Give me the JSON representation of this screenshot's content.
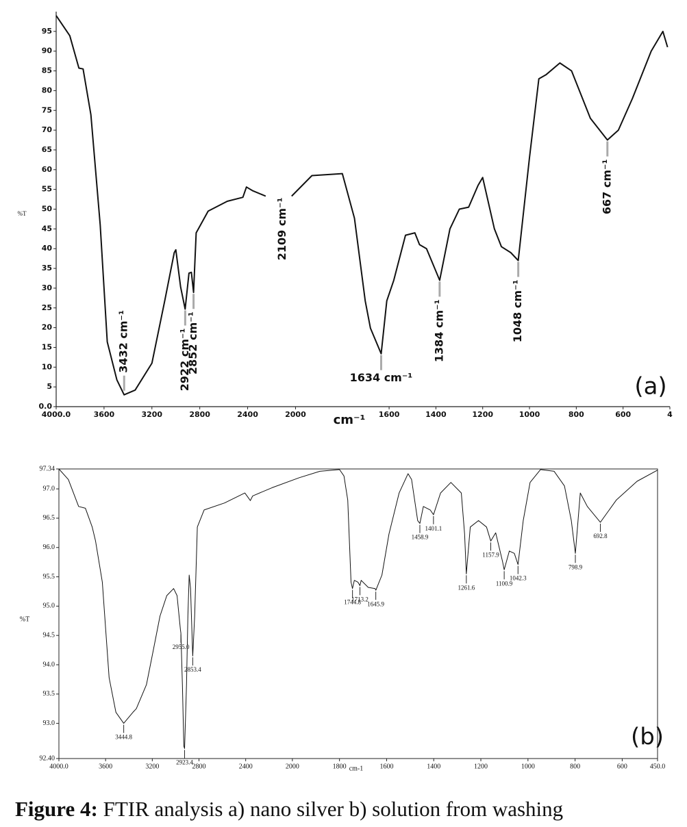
{
  "chart_data": [
    {
      "type": "line",
      "panel_label": "(a)",
      "x_label": "cm⁻¹",
      "y_label": "%T",
      "x_split": 2000,
      "xlim": [
        4000,
        400
      ],
      "ylim": [
        0,
        100
      ],
      "xticks": [
        {
          "value": 4000,
          "label": "4000.0"
        },
        3600,
        3200,
        2800,
        2400,
        2000,
        1600,
        1400,
        1200,
        1000,
        800,
        600,
        {
          "value": 400,
          "label": "4"
        }
      ],
      "yticks": [
        {
          "value": 0,
          "label": "0.0"
        },
        5,
        10,
        15,
        20,
        25,
        30,
        35,
        40,
        45,
        50,
        55,
        60,
        65,
        70,
        75,
        80,
        85,
        90,
        95
      ],
      "series": [
        {
          "color": "#111111",
          "x": [
            4000,
            3886,
            3810,
            3775,
            3710,
            3632,
            3573,
            3493,
            3432,
            3340,
            3200,
            3093,
            3013,
            3000,
            2960,
            2922,
            2890,
            2870,
            2852,
            2830,
            2730,
            2570,
            2440,
            2410,
            2360,
            2249,
            2140,
            2032,
            1930,
            1800,
            1748,
            1702,
            1680,
            1634,
            1610,
            1580,
            1530,
            1490,
            1470,
            1440,
            1384,
            1340,
            1300,
            1260,
            1220,
            1200,
            1150,
            1120,
            1080,
            1048,
            1000,
            960,
            930,
            870,
            820,
            740,
            667,
            620,
            560,
            480,
            430,
            410
          ],
          "values": [
            99,
            93.9,
            85.7,
            85.5,
            73.9,
            46,
            16.4,
            6.8,
            3,
            4.2,
            11,
            26.8,
            39,
            39.7,
            30.3,
            24.7,
            33.8,
            34,
            28.9,
            44,
            49.5,
            52,
            53,
            55.6,
            54.7,
            53.3,
            null,
            53.3,
            58.5,
            59,
            47.7,
            26.8,
            19.9,
            13.4,
            26.8,
            32,
            43.4,
            44,
            41,
            40,
            32,
            45,
            50,
            50.5,
            56,
            58,
            45,
            40.5,
            39,
            37,
            63,
            83,
            84,
            87,
            85,
            73,
            67.5,
            70,
            78,
            90,
            95,
            91
          ]
        }
      ],
      "annotations": [
        {
          "label": "3432 cm⁻¹",
          "x": 3432,
          "y": 3,
          "orientation": "vertical"
        },
        {
          "label": "2922 cm⁻¹",
          "x": 2922,
          "y": 24.7,
          "orientation": "vertical"
        },
        {
          "label": "2852 cm⁻¹",
          "x": 2852,
          "y": 28.9,
          "orientation": "vertical"
        },
        {
          "label": "2109 cm⁻¹",
          "x": 2109,
          "orientation": "vertical"
        },
        {
          "label": "1634 cm⁻¹",
          "x": 1634,
          "y": 13.4,
          "orientation": "horizontal"
        },
        {
          "label": "1384 cm⁻¹",
          "x": 1384,
          "y": 32,
          "orientation": "vertical"
        },
        {
          "label": "1048 cm⁻¹",
          "x": 1048,
          "y": 37,
          "orientation": "vertical"
        },
        {
          "label": "667 cm⁻¹",
          "x": 667,
          "y": 67.5,
          "orientation": "vertical"
        }
      ]
    },
    {
      "type": "line",
      "panel_label": "(b)",
      "x_label": "cm-1",
      "y_label": "%T",
      "x_split": 2000,
      "xlim": [
        4000,
        450
      ],
      "ylim": [
        92.4,
        97.34
      ],
      "xticks": [
        {
          "value": 4000,
          "label": "4000.0"
        },
        3600,
        3200,
        2800,
        2400,
        2000,
        1800,
        1600,
        1400,
        1200,
        1000,
        800,
        600,
        {
          "value": 450,
          "label": "450.0"
        }
      ],
      "yticks": [
        {
          "value": 92.4,
          "label": "92.40"
        },
        {
          "value": 93,
          "label": "93.0"
        },
        93.5,
        {
          "value": 94,
          "label": "94.0"
        },
        94.5,
        {
          "value": 95,
          "label": "95.0"
        },
        95.5,
        {
          "value": 96,
          "label": "96.0"
        },
        96.5,
        {
          "value": 97,
          "label": "97.0"
        },
        97.34
      ],
      "series": [
        {
          "color": "#111111",
          "x": [
            4000,
            3919,
            3831,
            3773,
            3715,
            3686,
            3628,
            3599,
            3570,
            3512,
            3444.8,
            3366,
            3337,
            3250,
            3192,
            3134,
            3076,
            3017,
            2988,
            2959,
            2955,
            2942,
            2930,
            2923.4,
            2907,
            2895,
            2884,
            2872,
            2855,
            2853.4,
            2837,
            2814,
            2756,
            2581,
            2407,
            2360,
            2340,
            2174,
            1971,
            1883,
            1800,
            1781,
            1765,
            1751,
            1744.8,
            1737,
            1722,
            1713.2,
            1708,
            1678,
            1649,
            1645.9,
            1620,
            1590,
            1547,
            1509,
            1494,
            1468,
            1458.9,
            1444,
            1415,
            1401.1,
            1371,
            1327,
            1283,
            1269,
            1261.6,
            1245,
            1210,
            1176,
            1157.9,
            1137,
            1108,
            1100.9,
            1079,
            1058,
            1042.3,
            1020,
            991,
            947,
            889,
            845,
            816,
            798.9,
            778,
            748,
            692.8,
            625,
            537,
            450
          ],
          "values": [
            97.34,
            97.16,
            96.7,
            96.67,
            96.35,
            96.11,
            95.41,
            94.6,
            93.78,
            93.19,
            93.0,
            93.19,
            93.25,
            93.66,
            94.24,
            94.83,
            95.18,
            95.3,
            95.18,
            94.6,
            94.54,
            93.66,
            92.61,
            92.57,
            93.66,
            94.83,
            95.53,
            95.3,
            94.24,
            94.15,
            94.83,
            96.35,
            96.64,
            96.76,
            96.93,
            96.8,
            96.88,
            97.02,
            97.19,
            97.3,
            97.33,
            97.22,
            96.81,
            95.41,
            95.3,
            95.44,
            95.41,
            95.35,
            95.44,
            95.32,
            95.3,
            95.27,
            95.53,
            96.23,
            96.93,
            97.26,
            97.16,
            96.46,
            96.41,
            96.7,
            96.64,
            96.56,
            96.93,
            97.11,
            96.93,
            96.23,
            95.55,
            96.35,
            96.46,
            96.35,
            96.11,
            96.25,
            95.76,
            95.62,
            95.94,
            95.9,
            95.71,
            96.46,
            97.11,
            97.33,
            97.3,
            97.05,
            96.46,
            95.9,
            96.93,
            96.7,
            96.43,
            96.81,
            97.13,
            97.32
          ]
        }
      ],
      "annotations": [
        {
          "label": "3444.8",
          "x": 3444.8,
          "y": 93.0,
          "orientation": "horizontal"
        },
        {
          "label": "2955.0",
          "x": 2955,
          "y": 94.54,
          "orientation": "horizontal"
        },
        {
          "label": "2853.4",
          "x": 2853.4,
          "y": 94.15,
          "orientation": "horizontal"
        },
        {
          "label": "2923.4",
          "x": 2923.4,
          "y": 92.57,
          "orientation": "horizontal"
        },
        {
          "label": "1744.8",
          "x": 1744.8,
          "y": 95.3,
          "orientation": "horizontal"
        },
        {
          "label": "1713.2",
          "x": 1713.2,
          "y": 95.35,
          "orientation": "horizontal"
        },
        {
          "label": "1645.9",
          "x": 1645.9,
          "y": 95.27,
          "orientation": "horizontal"
        },
        {
          "label": "1458.9",
          "x": 1458.9,
          "y": 96.41,
          "orientation": "horizontal"
        },
        {
          "label": "1401.1",
          "x": 1401.1,
          "y": 96.56,
          "orientation": "horizontal"
        },
        {
          "label": "1261.6",
          "x": 1261.6,
          "y": 95.55,
          "orientation": "horizontal"
        },
        {
          "label": "1157.9",
          "x": 1157.9,
          "y": 96.11,
          "orientation": "horizontal"
        },
        {
          "label": "1100.9",
          "x": 1100.9,
          "y": 95.62,
          "orientation": "horizontal"
        },
        {
          "label": "1042.3",
          "x": 1042.3,
          "y": 95.71,
          "orientation": "horizontal"
        },
        {
          "label": "798.9",
          "x": 798.9,
          "y": 95.9,
          "orientation": "horizontal"
        },
        {
          "label": "692.8",
          "x": 692.8,
          "y": 96.43,
          "orientation": "horizontal"
        }
      ]
    }
  ],
  "caption": {
    "label": "Figure 4:",
    "text": " FTIR analysis a) nano silver b) solution from washing"
  }
}
